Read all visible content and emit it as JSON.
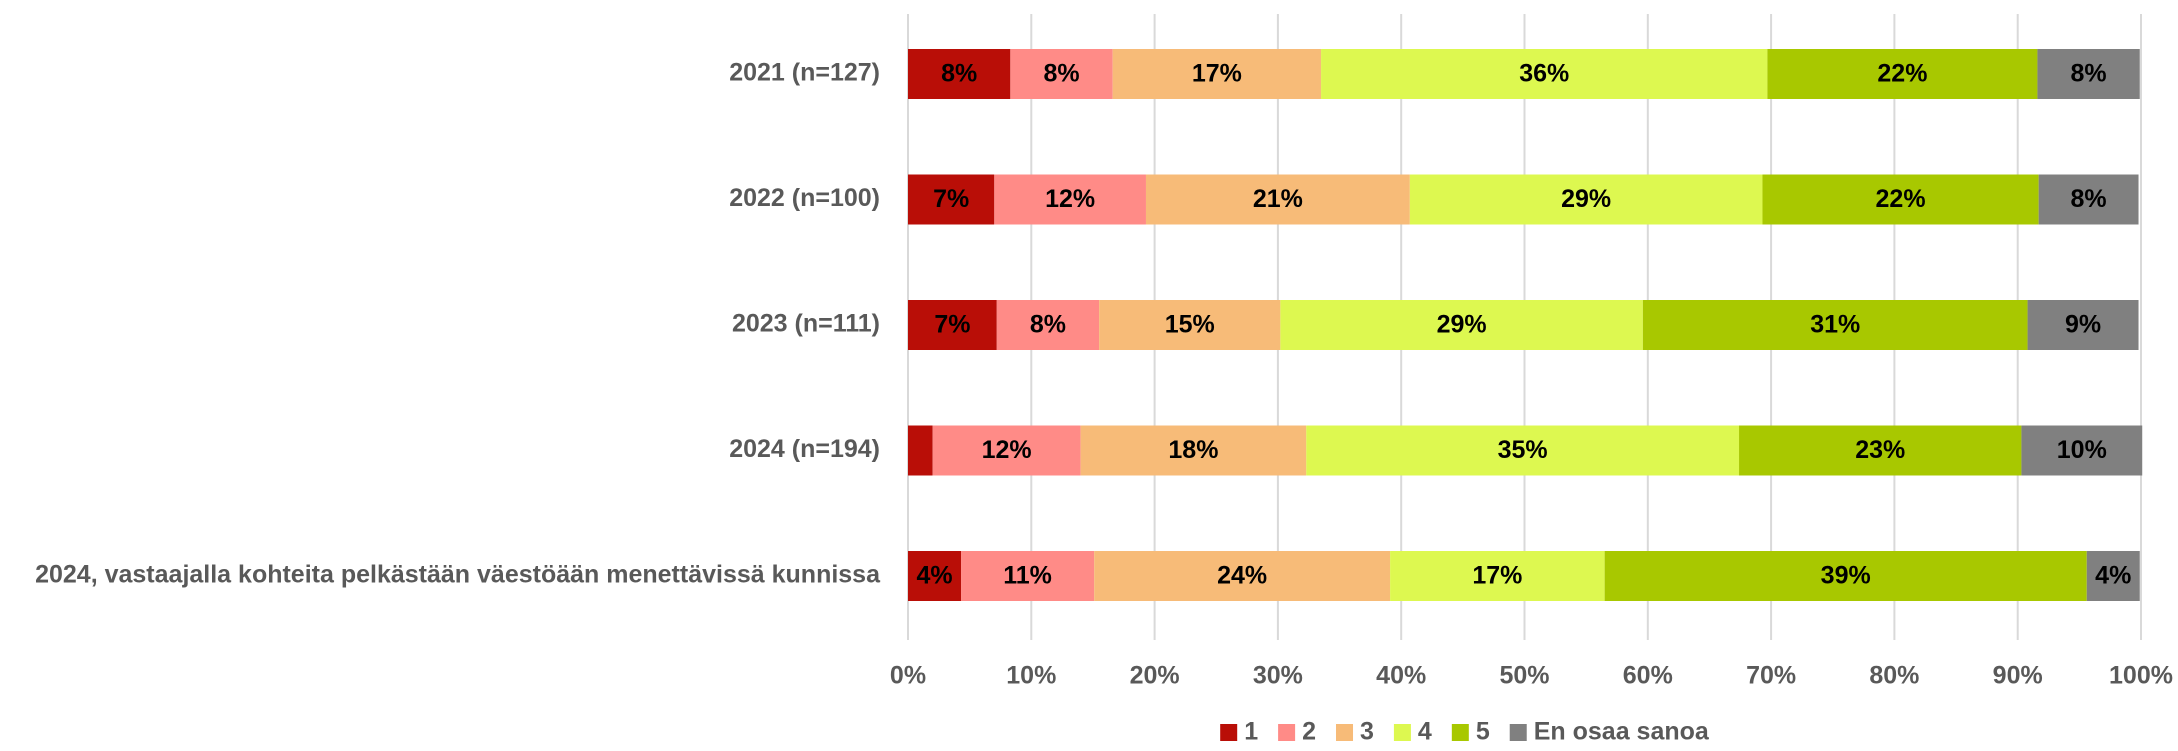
{
  "chart_data": {
    "type": "stacked-bar-horizontal",
    "categories": [
      "2021 (n=127)",
      "2022 (n=100)",
      "2023 (n=111)",
      "2024 (n=194)",
      "2024, vastaajalla kohteita pelkästään väestöään menettävissä kunnissa"
    ],
    "series": [
      {
        "name": "1",
        "color": "#b90e07",
        "values": [
          8.3,
          7.0,
          7.2,
          2.0,
          4.3
        ],
        "value_labels": [
          "8%",
          "7%",
          "7%",
          null,
          "4%"
        ]
      },
      {
        "name": "2",
        "color": "#ff8b87",
        "values": [
          8.3,
          12.3,
          8.3,
          12.0,
          10.8
        ],
        "value_labels": [
          "8%",
          "12%",
          "8%",
          "12%",
          "11%"
        ]
      },
      {
        "name": "3",
        "color": "#f7bb78",
        "values": [
          16.9,
          21.4,
          14.7,
          18.3,
          24.0
        ],
        "value_labels": [
          "17%",
          "21%",
          "15%",
          "18%",
          "24%"
        ]
      },
      {
        "name": "4",
        "color": "#ddf850",
        "values": [
          36.2,
          28.6,
          29.4,
          35.1,
          17.4
        ],
        "value_labels": [
          "36%",
          "29%",
          "29%",
          "35%",
          "17%"
        ]
      },
      {
        "name": "5",
        "color": "#a8c800",
        "values": [
          21.9,
          22.4,
          31.2,
          22.9,
          39.1
        ],
        "value_labels": [
          "22%",
          "22%",
          "31%",
          "23%",
          "39%"
        ]
      },
      {
        "name": "En osaa sanoa",
        "color": "#808080",
        "values": [
          8.3,
          8.1,
          9.0,
          9.8,
          4.3
        ],
        "value_labels": [
          "8%",
          "8%",
          "9%",
          "10%",
          "4%"
        ]
      }
    ],
    "xlim": [
      0,
      100
    ],
    "xticks": [
      {
        "value": 0,
        "label": "0%"
      },
      {
        "value": 10,
        "label": "10%"
      },
      {
        "value": 20,
        "label": "20%"
      },
      {
        "value": 30,
        "label": "30%"
      },
      {
        "value": 40,
        "label": "40%"
      },
      {
        "value": 50,
        "label": "50%"
      },
      {
        "value": 60,
        "label": "60%"
      },
      {
        "value": 70,
        "label": "70%"
      },
      {
        "value": 80,
        "label": "80%"
      },
      {
        "value": 90,
        "label": "90%"
      },
      {
        "value": 100,
        "label": "100%"
      }
    ],
    "grid": true,
    "legend": "bottom"
  }
}
